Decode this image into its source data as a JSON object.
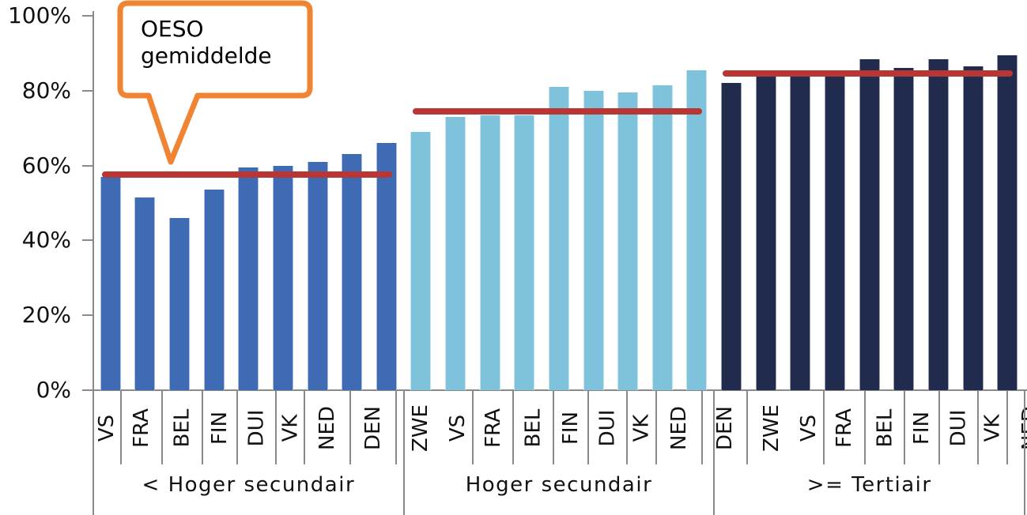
{
  "callout": {
    "line1": "OESO",
    "line2": "gemiddelde"
  },
  "colors": {
    "avg_line": "#B83734",
    "callout_border": "#EF8533",
    "axis_gray": "#8a8a8a",
    "group1_bar": "#3E6BB4",
    "group2_bar": "#7EC3DB",
    "group3_bar": "#202B4E"
  },
  "chart_data": {
    "type": "bar",
    "title": "",
    "xlabel": "",
    "ylabel": "",
    "ylim": [
      0,
      100
    ],
    "grid": false,
    "legend": false,
    "yticks": [
      "100%",
      "80%",
      "60%",
      "40%",
      "20%",
      "0%"
    ],
    "categories": [
      "VS",
      "FRA",
      "BEL",
      "FIN",
      "DUI",
      "VK",
      "NED",
      "DEN",
      "ZWE"
    ],
    "avg_line_label": "OESO gemiddelde",
    "groups": [
      {
        "label": "< Hoger secundair",
        "color": "#3E6BB4",
        "average": 57.5,
        "values": [
          57,
          51.5,
          46,
          53.5,
          59.5,
          60,
          61,
          63,
          66
        ]
      },
      {
        "label": "Hoger secundair",
        "color": "#7EC3DB",
        "average": 74.5,
        "values": [
          69,
          73,
          73.5,
          73.5,
          81,
          80,
          79.5,
          81.5,
          85.5
        ]
      },
      {
        "label": ">= Tertiair",
        "color": "#202B4E",
        "average": 84.5,
        "values": [
          82,
          85.5,
          85.5,
          84,
          88.5,
          86,
          88.5,
          86.5,
          89.5
        ]
      }
    ]
  }
}
